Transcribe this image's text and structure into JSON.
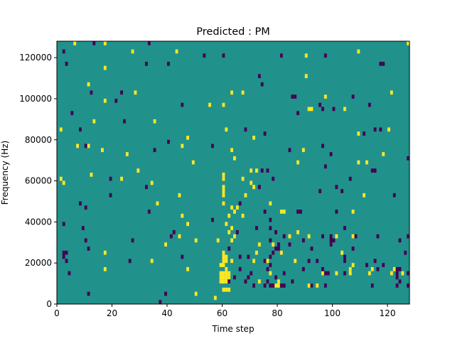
{
  "chart_data": {
    "type": "heatmap",
    "title": "Predicted : PM",
    "xlabel": "Time step",
    "ylabel": "Frequency (Hz)",
    "xlim": [
      0,
      128
    ],
    "ylim": [
      0,
      128000
    ],
    "xticks": [
      0,
      20,
      40,
      60,
      80,
      100,
      120
    ],
    "yticks": [
      0,
      20000,
      40000,
      60000,
      80000,
      100000,
      120000
    ],
    "xtick_labels": [
      "0",
      "20",
      "40",
      "60",
      "80",
      "100",
      "120"
    ],
    "ytick_labels": [
      "0",
      "20000",
      "40000",
      "60000",
      "80000",
      "100000",
      "120000"
    ],
    "cell_height_hz": 2000,
    "colors": {
      "background": "#21918c",
      "high": "#fde725",
      "low": "#440154"
    },
    "levels": {
      "background": 0,
      "high": 1,
      "low": -1
    },
    "cells": {
      "high": [
        [
          6,
          126000
        ],
        [
          17,
          126000
        ],
        [
          127,
          126000
        ],
        [
          27,
          122000
        ],
        [
          43,
          122000
        ],
        [
          109,
          122000
        ],
        [
          90,
          120000
        ],
        [
          17,
          114000
        ],
        [
          90,
          110000
        ],
        [
          11,
          106000
        ],
        [
          28,
          102000
        ],
        [
          63,
          102000
        ],
        [
          67,
          102000
        ],
        [
          121,
          102000
        ],
        [
          97,
          100000
        ],
        [
          17,
          98000
        ],
        [
          55,
          96000
        ],
        [
          60,
          96000
        ],
        [
          91,
          94000
        ],
        [
          92,
          94000
        ],
        [
          104,
          94000
        ],
        [
          13,
          88000
        ],
        [
          35,
          88000
        ],
        [
          1,
          84000
        ],
        [
          61,
          84000
        ],
        [
          120,
          84000
        ],
        [
          109,
          82000
        ],
        [
          47,
          80000
        ],
        [
          71,
          80000
        ],
        [
          7,
          76000
        ],
        [
          11,
          76000
        ],
        [
          45,
          76000
        ],
        [
          16,
          74000
        ],
        [
          63,
          74000
        ],
        [
          89,
          74000
        ],
        [
          25,
          72000
        ],
        [
          118,
          72000
        ],
        [
          49,
          68000
        ],
        [
          64,
          70000
        ],
        [
          87,
          68000
        ],
        [
          109,
          68000
        ],
        [
          112,
          68000
        ],
        [
          29,
          64000
        ],
        [
          70,
          64000
        ],
        [
          72,
          64000
        ],
        [
          12,
          62000
        ],
        [
          60,
          62000
        ],
        [
          1,
          60000
        ],
        [
          2,
          58000
        ],
        [
          23,
          60000
        ],
        [
          34,
          58000
        ],
        [
          60,
          60000
        ],
        [
          67,
          60000
        ],
        [
          70,
          58000
        ],
        [
          60,
          56000
        ],
        [
          60,
          54000
        ],
        [
          71,
          56000
        ],
        [
          44,
          52000
        ],
        [
          60,
          52000
        ],
        [
          68,
          52000
        ],
        [
          111,
          52000
        ],
        [
          36,
          48000
        ],
        [
          60,
          48000
        ],
        [
          77,
          48000
        ],
        [
          63,
          46000
        ],
        [
          64,
          44000
        ],
        [
          65,
          46000
        ],
        [
          81,
          44000
        ],
        [
          82,
          44000
        ],
        [
          107,
          44000
        ],
        [
          45,
          42000
        ],
        [
          62,
          42000
        ],
        [
          67,
          42000
        ],
        [
          47,
          38000
        ],
        [
          61,
          38000
        ],
        [
          63,
          36000
        ],
        [
          62,
          34000
        ],
        [
          87,
          34000
        ],
        [
          44,
          32000
        ],
        [
          50,
          30000
        ],
        [
          58,
          30000
        ],
        [
          63,
          30000
        ],
        [
          64,
          32000
        ],
        [
          84,
          32000
        ],
        [
          91,
          32000
        ],
        [
          101,
          32000
        ],
        [
          107,
          32000
        ],
        [
          39,
          28000
        ],
        [
          73,
          28000
        ],
        [
          78,
          28000
        ],
        [
          99,
          28000
        ],
        [
          17,
          24000
        ],
        [
          60,
          22000
        ],
        [
          60,
          24000
        ],
        [
          60,
          20000
        ],
        [
          61,
          22000
        ],
        [
          61,
          20000
        ],
        [
          72,
          24000
        ],
        [
          81,
          24000
        ],
        [
          103,
          24000
        ],
        [
          34,
          20000
        ],
        [
          63,
          20000
        ],
        [
          71,
          20000
        ],
        [
          76,
          20000
        ],
        [
          86,
          20000
        ],
        [
          107,
          18000
        ],
        [
          59,
          18000
        ],
        [
          60,
          18000
        ],
        [
          17,
          16000
        ],
        [
          47,
          16000
        ],
        [
          61,
          16000
        ],
        [
          106,
          16000
        ],
        [
          114,
          16000
        ],
        [
          122,
          16000
        ],
        [
          59,
          14000
        ],
        [
          60,
          14000
        ],
        [
          61,
          14000
        ],
        [
          62,
          14000
        ],
        [
          77,
          14000
        ],
        [
          121,
          14000
        ],
        [
          59,
          12000
        ],
        [
          60,
          12000
        ],
        [
          61,
          12000
        ],
        [
          62,
          12000
        ],
        [
          96,
          14000
        ],
        [
          101,
          14000
        ],
        [
          106,
          14000
        ],
        [
          113,
          14000
        ],
        [
          125,
          14000
        ],
        [
          59,
          10000
        ],
        [
          60,
          10000
        ],
        [
          61,
          10000
        ],
        [
          62,
          10000
        ],
        [
          73,
          10000
        ],
        [
          80,
          10000
        ],
        [
          79,
          8000
        ],
        [
          80,
          8000
        ],
        [
          91,
          8000
        ],
        [
          92,
          8000
        ],
        [
          60,
          6000
        ],
        [
          61,
          6000
        ],
        [
          62,
          6000
        ],
        [
          50,
          4000
        ],
        [
          94,
          8000
        ],
        [
          57,
          2000
        ]
      ],
      "low": [
        [
          2,
          122000
        ],
        [
          13,
          126000
        ],
        [
          33,
          126000
        ],
        [
          53,
          120000
        ],
        [
          60,
          120000
        ],
        [
          81,
          120000
        ],
        [
          97,
          120000
        ],
        [
          3,
          116000
        ],
        [
          32,
          116000
        ],
        [
          40,
          116000
        ],
        [
          117,
          116000
        ],
        [
          118,
          116000
        ],
        [
          73,
          110000
        ],
        [
          74,
          106000
        ],
        [
          12,
          102000
        ],
        [
          23,
          102000
        ],
        [
          85,
          100000
        ],
        [
          86,
          100000
        ],
        [
          107,
          100000
        ],
        [
          21,
          98000
        ],
        [
          45,
          96000
        ],
        [
          95,
          96000
        ],
        [
          113,
          96000
        ],
        [
          5,
          92000
        ],
        [
          87,
          92000
        ],
        [
          96,
          94000
        ],
        [
          100,
          94000
        ],
        [
          24,
          88000
        ],
        [
          8,
          84000
        ],
        [
          68,
          84000
        ],
        [
          115,
          84000
        ],
        [
          117,
          84000
        ],
        [
          75,
          82000
        ],
        [
          111,
          82000
        ],
        [
          40,
          78000
        ],
        [
          56,
          76000
        ],
        [
          10,
          76000
        ],
        [
          96,
          76000
        ],
        [
          35,
          74000
        ],
        [
          84,
          74000
        ],
        [
          99,
          72000
        ],
        [
          127,
          70000
        ],
        [
          97,
          66000
        ],
        [
          74,
          64000
        ],
        [
          76,
          64000
        ],
        [
          114,
          64000
        ],
        [
          115,
          64000
        ],
        [
          19,
          60000
        ],
        [
          78,
          60000
        ],
        [
          106,
          60000
        ],
        [
          101,
          56000
        ],
        [
          32,
          56000
        ],
        [
          73,
          56000
        ],
        [
          95,
          54000
        ],
        [
          103,
          54000
        ],
        [
          19,
          52000
        ],
        [
          122,
          52000
        ],
        [
          8,
          48000
        ],
        [
          66,
          48000
        ],
        [
          10,
          46000
        ],
        [
          33,
          44000
        ],
        [
          75,
          44000
        ],
        [
          87,
          44000
        ],
        [
          88,
          44000
        ],
        [
          101,
          44000
        ],
        [
          56,
          40000
        ],
        [
          77,
          40000
        ],
        [
          2,
          38000
        ],
        [
          9,
          36000
        ],
        [
          72,
          36000
        ],
        [
          65,
          34000
        ],
        [
          77,
          36000
        ],
        [
          104,
          36000
        ],
        [
          42,
          34000
        ],
        [
          79,
          34000
        ],
        [
          96,
          32000
        ],
        [
          99,
          32000
        ],
        [
          108,
          32000
        ],
        [
          116,
          32000
        ],
        [
          127,
          32000
        ],
        [
          41,
          32000
        ],
        [
          82,
          32000
        ],
        [
          10,
          30000
        ],
        [
          27,
          30000
        ],
        [
          77,
          30000
        ],
        [
          89,
          30000
        ],
        [
          99,
          30000
        ],
        [
          100,
          30000
        ],
        [
          124,
          30000
        ],
        [
          80,
          28000
        ],
        [
          84,
          28000
        ],
        [
          99,
          28000
        ],
        [
          79,
          26000
        ],
        [
          80,
          26000
        ],
        [
          92,
          26000
        ],
        [
          107,
          26000
        ],
        [
          11,
          26000
        ],
        [
          62,
          26000
        ],
        [
          2,
          24000
        ],
        [
          3,
          24000
        ],
        [
          78,
          24000
        ],
        [
          69,
          22000
        ],
        [
          104,
          22000
        ],
        [
          2,
          22000
        ],
        [
          45,
          22000
        ],
        [
          66,
          22000
        ],
        [
          77,
          22000
        ],
        [
          104,
          20000
        ],
        [
          126,
          24000
        ],
        [
          3,
          20000
        ],
        [
          26,
          20000
        ],
        [
          75,
          20000
        ],
        [
          91,
          20000
        ],
        [
          115,
          20000
        ],
        [
          118,
          18000
        ],
        [
          112,
          18000
        ],
        [
          94,
          20000
        ],
        [
          77,
          18000
        ],
        [
          66,
          16000
        ],
        [
          76,
          16000
        ],
        [
          89,
          16000
        ],
        [
          116,
          16000
        ],
        [
          123,
          16000
        ],
        [
          124,
          16000
        ],
        [
          96,
          16000
        ],
        [
          4,
          14000
        ],
        [
          70,
          14000
        ],
        [
          127,
          14000
        ],
        [
          69,
          12000
        ],
        [
          104,
          14000
        ],
        [
          68,
          10000
        ],
        [
          85,
          10000
        ],
        [
          124,
          10000
        ],
        [
          64,
          12000
        ],
        [
          71,
          8000
        ],
        [
          75,
          8000
        ],
        [
          77,
          8000
        ],
        [
          78,
          8000
        ],
        [
          81,
          8000
        ],
        [
          82,
          8000
        ],
        [
          92,
          8000
        ],
        [
          97,
          8000
        ],
        [
          114,
          8000
        ],
        [
          123,
          12000
        ],
        [
          123,
          8000
        ],
        [
          79,
          12000
        ],
        [
          82,
          14000
        ],
        [
          97,
          14000
        ],
        [
          98,
          14000
        ],
        [
          123,
          14000
        ],
        [
          127,
          8000
        ],
        [
          62,
          10000
        ],
        [
          76,
          10000
        ],
        [
          11,
          4000
        ],
        [
          39,
          4000
        ],
        [
          37,
          0
        ]
      ]
    }
  }
}
